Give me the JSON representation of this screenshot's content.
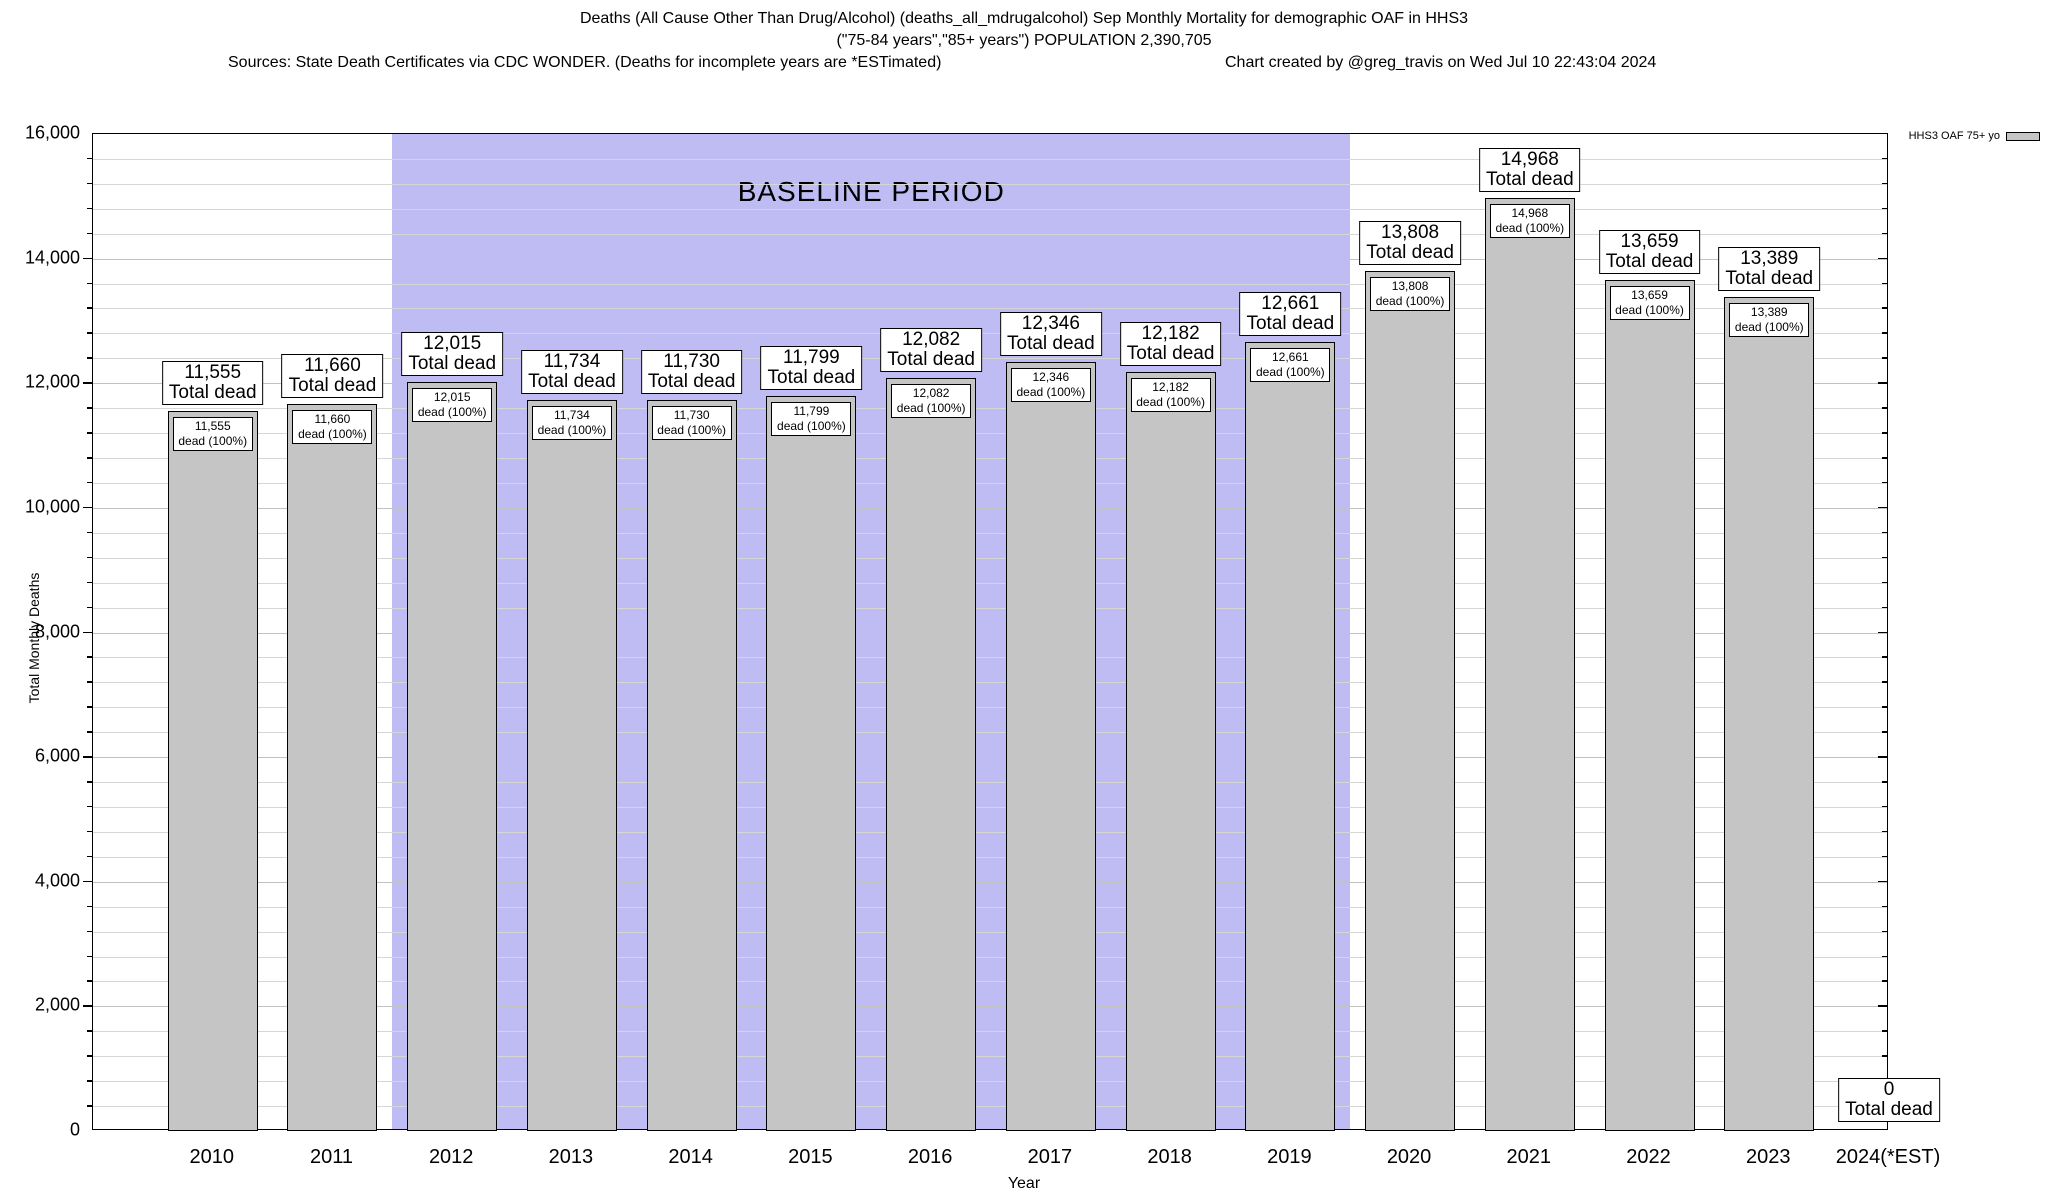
{
  "header": {
    "title_line1": "Deaths (All Cause Other Than Drug/Alcohol) (deaths_all_mdrugalcohol) Sep Monthly Mortality for demographic OAF in HHS3",
    "title_line2": "(\"75-84 years\",\"85+ years\") POPULATION 2,390,705",
    "sources": "Sources: State Death Certificates via CDC WONDER. (Deaths for incomplete years are *ESTimated)",
    "credit": "Chart created by @greg_travis on Wed Jul 10 22:43:04 2024"
  },
  "chart_data": {
    "type": "bar",
    "title": "Deaths (All Cause Other Than Drug/Alcohol) (deaths_all_mdrugalcohol) Sep Monthly Mortality for demographic OAF in HHS3",
    "subtitle": "(\"75-84 years\",\"85+ years\") POPULATION 2,390,705",
    "categories": [
      "2010",
      "2011",
      "2012",
      "2013",
      "2014",
      "2015",
      "2016",
      "2017",
      "2018",
      "2019",
      "2020",
      "2021",
      "2022",
      "2023",
      "2024(*EST)"
    ],
    "values": [
      11555,
      11660,
      12015,
      11734,
      11730,
      11799,
      12082,
      12346,
      12182,
      12661,
      13808,
      14968,
      13659,
      13389,
      0
    ],
    "bar_outer_label_line2": "Total dead",
    "bar_inner_label_line2": "dead (100%)",
    "xlabel": "Year",
    "ylabel": "Total Monthly Deaths",
    "ylim": [
      0,
      16000
    ],
    "ytick_step": 2000,
    "yminor_step": 400,
    "grid": true,
    "legend": {
      "label": "HHS3 OAF 75+ yo",
      "position": "top-right-outside"
    },
    "annotations": [
      {
        "text": "BASELINE PERIOD",
        "band_start_category": "2012",
        "band_end_category": "2019",
        "band_start_index": 2,
        "band_end_index": 9
      }
    ],
    "colors": {
      "bar_fill": "#c5c5c5",
      "bar_border": "#000000",
      "baseline_band": "#bfbcf4",
      "label_box_bg": "#ffffff",
      "text": "#000000"
    }
  }
}
